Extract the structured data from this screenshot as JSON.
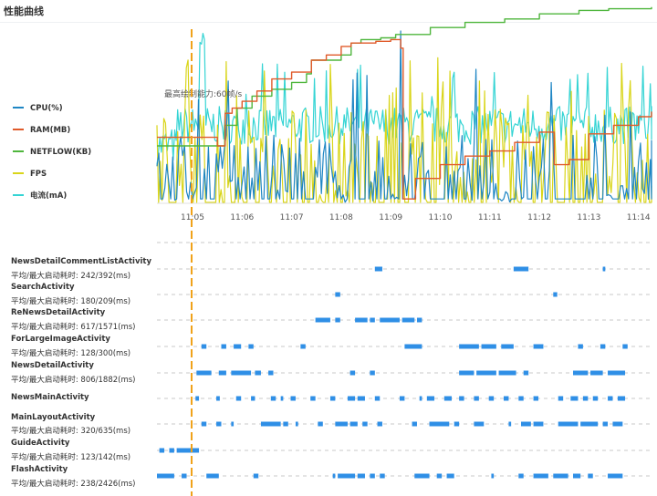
{
  "page": {
    "title": "性能曲线"
  },
  "colors": {
    "cpu": "#1f86c4",
    "ram": "#e05a2a",
    "netflow": "#4fb63d",
    "fps": "#d9d51a",
    "current": "#35d4d4",
    "marker": "#f0a21a",
    "bar": "#2f8fe6",
    "grid": "#c9c9c9"
  },
  "chart_data": {
    "type": "line",
    "x": [
      "11:05",
      "11:06",
      "11:07",
      "11:08",
      "11:09",
      "11:10",
      "11:11",
      "11:12",
      "11:13",
      "11:14"
    ],
    "xlabel": "",
    "ylabel": "",
    "annotation": "最高绘制能力:60帧/s",
    "marker_x": "11:05",
    "series": [
      {
        "name": "CPU(%)",
        "key": "cpu"
      },
      {
        "name": "RAM(MB)",
        "key": "ram"
      },
      {
        "name": "NETFLOW(KB)",
        "key": "netflow"
      },
      {
        "name": "FPS",
        "key": "fps"
      },
      {
        "name": "电流(mA)",
        "key": "current"
      }
    ],
    "ram_values": [
      [
        0.0,
        0.38
      ],
      [
        0.4,
        0.38
      ],
      [
        0.5,
        0.33
      ],
      [
        0.62,
        0.33
      ],
      [
        0.66,
        0.52
      ],
      [
        0.8,
        0.55
      ],
      [
        1.0,
        0.59
      ],
      [
        1.3,
        0.65
      ],
      [
        1.6,
        0.72
      ],
      [
        2.0,
        0.76
      ],
      [
        2.4,
        0.83
      ],
      [
        2.7,
        0.86
      ],
      [
        3.0,
        0.91
      ],
      [
        3.2,
        0.93
      ],
      [
        3.7,
        0.94
      ],
      [
        4.0,
        0.95
      ],
      [
        4.2,
        0.9
      ],
      [
        4.25,
        0.02
      ],
      [
        4.5,
        0.14
      ],
      [
        5.0,
        0.22
      ],
      [
        5.5,
        0.27
      ],
      [
        6.0,
        0.3
      ],
      [
        6.5,
        0.35
      ],
      [
        7.0,
        0.41
      ],
      [
        7.25,
        0.41
      ],
      [
        7.3,
        0.22
      ],
      [
        7.6,
        0.25
      ],
      [
        8.0,
        0.4
      ],
      [
        8.5,
        0.45
      ],
      [
        9.0,
        0.5
      ],
      [
        9.45,
        0.53
      ]
    ],
    "netflow_values": [
      [
        0.0,
        0.33
      ],
      [
        0.55,
        0.33
      ],
      [
        0.65,
        0.45
      ],
      [
        0.9,
        0.55
      ],
      [
        1.2,
        0.62
      ],
      [
        1.6,
        0.66
      ],
      [
        2.0,
        0.7
      ],
      [
        2.3,
        0.75
      ],
      [
        2.4,
        0.83
      ],
      [
        3.0,
        0.86
      ],
      [
        3.2,
        0.93
      ],
      [
        3.4,
        0.95
      ],
      [
        3.8,
        0.96
      ],
      [
        4.1,
        0.98
      ],
      [
        4.8,
        1.02
      ],
      [
        5.5,
        1.05
      ],
      [
        6.3,
        1.07
      ],
      [
        7.0,
        1.1
      ],
      [
        7.8,
        1.12
      ],
      [
        8.4,
        1.13
      ],
      [
        9.45,
        1.14
      ]
    ],
    "activities": [
      {
        "name": "",
        "stat": "",
        "bars": []
      },
      {
        "name": "NewsDetailCommentListActivity",
        "stat": "平均/最大启动耗时: 242/392(ms)",
        "bars": [
          [
            4.4,
            4.55
          ],
          [
            7.2,
            7.5
          ],
          [
            9.0,
            9.05
          ]
        ]
      },
      {
        "name": "SearchActivity",
        "stat": "平均/最大启动耗时: 180/209(ms)",
        "bars": [
          [
            3.6,
            3.7
          ],
          [
            8.0,
            8.08
          ]
        ]
      },
      {
        "name": "ReNewsDetailActivity",
        "stat": "平均/最大启动耗时: 617/1571(ms)",
        "bars": [
          [
            3.2,
            3.5
          ],
          [
            3.6,
            3.7
          ],
          [
            4.0,
            4.25
          ],
          [
            4.3,
            4.4
          ],
          [
            4.5,
            4.9
          ],
          [
            4.95,
            5.2
          ],
          [
            5.25,
            5.35
          ]
        ]
      },
      {
        "name": "ForLargeImageActivity",
        "stat": "平均/最大启动耗时: 128/300(ms)",
        "bars": [
          [
            0.9,
            1.0
          ],
          [
            1.3,
            1.4
          ],
          [
            1.55,
            1.7
          ],
          [
            1.85,
            1.95
          ],
          [
            2.9,
            3.0
          ],
          [
            5.0,
            5.35
          ],
          [
            6.1,
            6.5
          ],
          [
            6.55,
            6.85
          ],
          [
            6.95,
            7.2
          ],
          [
            7.6,
            7.8
          ],
          [
            8.5,
            8.6
          ],
          [
            8.95,
            9.05
          ],
          [
            9.4,
            9.5
          ]
        ]
      },
      {
        "name": "NewsDetailActivity",
        "stat": "平均/最大启动耗时: 806/1882(ms)",
        "bars": [
          [
            0.8,
            1.1
          ],
          [
            1.25,
            1.4
          ],
          [
            1.5,
            1.9
          ],
          [
            1.98,
            2.1
          ],
          [
            2.25,
            2.35
          ],
          [
            3.9,
            4.0
          ],
          [
            4.3,
            4.4
          ],
          [
            6.1,
            6.4
          ],
          [
            6.45,
            6.85
          ],
          [
            6.9,
            7.25
          ],
          [
            7.4,
            7.5
          ],
          [
            8.4,
            8.7
          ],
          [
            8.75,
            9.0
          ],
          [
            9.1,
            9.45
          ]
        ]
      },
      {
        "name": "NewsMainActivity",
        "stat": "",
        "bars": [
          [
            0.78,
            0.85
          ],
          [
            1.2,
            1.27
          ],
          [
            1.6,
            1.7
          ],
          [
            1.9,
            1.98
          ],
          [
            2.3,
            2.4
          ],
          [
            2.5,
            2.55
          ],
          [
            2.7,
            2.8
          ],
          [
            3.1,
            3.2
          ],
          [
            3.5,
            3.6
          ],
          [
            3.85,
            4.0
          ],
          [
            4.05,
            4.2
          ],
          [
            4.4,
            4.5
          ],
          [
            4.9,
            5.0
          ],
          [
            5.3,
            5.35
          ],
          [
            5.45,
            5.6
          ],
          [
            5.8,
            5.95
          ],
          [
            6.1,
            6.2
          ],
          [
            6.4,
            6.5
          ],
          [
            6.7,
            6.8
          ],
          [
            7.0,
            7.1
          ],
          [
            7.3,
            7.4
          ],
          [
            7.6,
            7.7
          ],
          [
            8.1,
            8.2
          ],
          [
            8.35,
            8.5
          ],
          [
            8.6,
            8.7
          ],
          [
            8.8,
            8.9
          ],
          [
            9.1,
            9.2
          ],
          [
            9.3,
            9.45
          ]
        ]
      },
      {
        "name": "MainLayoutActivity",
        "stat": "平均/最大启动耗时: 320/635(ms)",
        "bars": [
          [
            0.9,
            1.0
          ],
          [
            1.2,
            1.3
          ],
          [
            1.5,
            1.55
          ],
          [
            2.1,
            2.5
          ],
          [
            2.55,
            2.65
          ],
          [
            2.8,
            2.85
          ],
          [
            3.25,
            3.35
          ],
          [
            3.6,
            3.85
          ],
          [
            3.9,
            4.05
          ],
          [
            4.15,
            4.25
          ],
          [
            4.45,
            4.55
          ],
          [
            5.15,
            5.25
          ],
          [
            5.5,
            5.9
          ],
          [
            6.0,
            6.1
          ],
          [
            6.4,
            6.6
          ],
          [
            7.1,
            7.15
          ],
          [
            7.35,
            7.55
          ],
          [
            7.6,
            7.8
          ],
          [
            8.1,
            8.5
          ],
          [
            8.55,
            8.9
          ],
          [
            9.0,
            9.1
          ],
          [
            9.2,
            9.4
          ]
        ]
      },
      {
        "name": "GuideActivity",
        "stat": "平均/最大启动耗时: 123/142(ms)",
        "bars": [
          [
            0.05,
            0.15
          ],
          [
            0.25,
            0.35
          ],
          [
            0.4,
            0.85
          ]
        ]
      },
      {
        "name": "FlashActivity",
        "stat": "平均/最大启动耗时: 238/2426(ms)",
        "bars": [
          [
            0.0,
            0.35
          ],
          [
            0.5,
            0.6
          ],
          [
            1.0,
            1.25
          ],
          [
            1.95,
            2.05
          ],
          [
            3.55,
            3.6
          ],
          [
            3.65,
            4.0
          ],
          [
            4.05,
            4.2
          ],
          [
            4.3,
            4.4
          ],
          [
            4.5,
            4.6
          ],
          [
            5.2,
            5.5
          ],
          [
            5.65,
            5.75
          ],
          [
            5.85,
            6.0
          ],
          [
            6.75,
            6.8
          ],
          [
            7.3,
            7.4
          ],
          [
            7.6,
            7.9
          ],
          [
            8.0,
            8.3
          ],
          [
            8.4,
            8.55
          ],
          [
            8.7,
            8.8
          ],
          [
            9.1,
            9.4
          ]
        ]
      }
    ]
  }
}
